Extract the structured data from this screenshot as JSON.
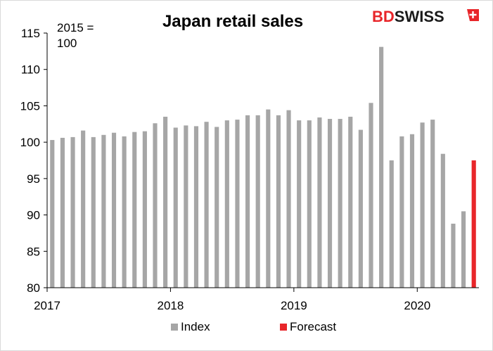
{
  "chart_data": {
    "type": "bar",
    "title": "Japan retail sales",
    "unit_note": [
      "2015 =",
      "100"
    ],
    "ylim": [
      80,
      115
    ],
    "yticks": [
      80,
      85,
      90,
      95,
      100,
      105,
      110,
      115
    ],
    "xticks": [
      "2017",
      "2018",
      "2019",
      "2020"
    ],
    "grid": false,
    "legend_position": "bottom",
    "series": [
      {
        "name": "Index",
        "color": "#a6a6a6",
        "x": [
          "2017-01",
          "2017-02",
          "2017-03",
          "2017-04",
          "2017-05",
          "2017-06",
          "2017-07",
          "2017-08",
          "2017-09",
          "2017-10",
          "2017-11",
          "2017-12",
          "2018-01",
          "2018-02",
          "2018-03",
          "2018-04",
          "2018-05",
          "2018-06",
          "2018-07",
          "2018-08",
          "2018-09",
          "2018-10",
          "2018-11",
          "2018-12",
          "2019-01",
          "2019-02",
          "2019-03",
          "2019-04",
          "2019-05",
          "2019-06",
          "2019-07",
          "2019-08",
          "2019-09",
          "2019-10",
          "2019-11",
          "2019-12",
          "2020-01",
          "2020-02",
          "2020-03",
          "2020-04",
          "2020-05"
        ],
        "values": [
          100.3,
          100.6,
          100.7,
          101.6,
          100.7,
          101.0,
          101.3,
          100.8,
          101.4,
          101.5,
          102.6,
          103.5,
          102.0,
          102.3,
          102.2,
          102.8,
          102.1,
          103.0,
          103.1,
          103.7,
          103.7,
          104.5,
          103.7,
          104.4,
          103.0,
          103.0,
          103.4,
          103.2,
          103.2,
          103.5,
          101.7,
          105.4,
          113.1,
          97.5,
          100.8,
          101.1,
          102.7,
          103.1,
          98.4,
          88.8,
          90.5
        ]
      },
      {
        "name": "Forecast",
        "color": "#e8262a",
        "x": [
          "2020-06"
        ],
        "values": [
          97.5
        ]
      }
    ]
  },
  "logo": {
    "part1": "BD",
    "part2": "SWISS"
  },
  "colors": {
    "axis": "#000000",
    "logo_red": "#e8262a"
  }
}
